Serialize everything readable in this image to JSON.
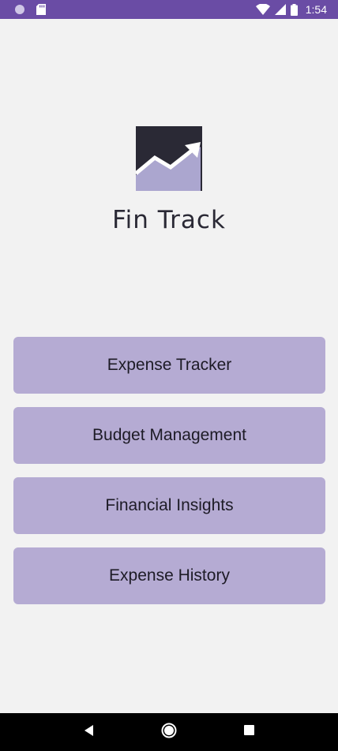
{
  "status_bar": {
    "time": "1:54",
    "background": "#6a4ca5",
    "icons": [
      "circle-status-icon",
      "sd-card-icon",
      "wifi-icon",
      "signal-icon",
      "battery-icon"
    ]
  },
  "logo": {
    "icon": "trend-chart-logo-icon",
    "text": "Fin Track"
  },
  "menu": {
    "items": [
      {
        "label": "Expense Tracker"
      },
      {
        "label": "Budget Management"
      },
      {
        "label": "Financial Insights"
      },
      {
        "label": "Expense History"
      }
    ],
    "button_color": "#b5abd3"
  },
  "nav_bar": {
    "icons": [
      "back-icon",
      "home-icon",
      "recents-icon"
    ]
  }
}
